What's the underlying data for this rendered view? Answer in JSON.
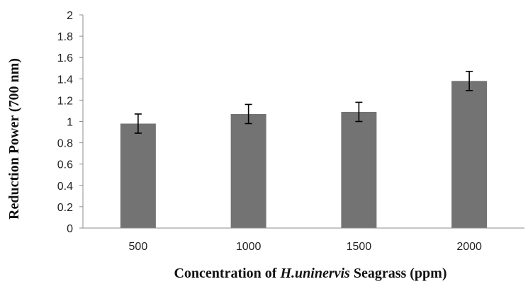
{
  "chart_data": {
    "type": "bar",
    "categories": [
      "500",
      "1000",
      "1500",
      "2000"
    ],
    "values": [
      0.98,
      1.07,
      1.09,
      1.38
    ],
    "errors": [
      0.09,
      0.09,
      0.09,
      0.09
    ],
    "ylabel": "Reduction Power (700 nm)",
    "xlabel": {
      "prefix": "Concentration of ",
      "italic": "H.uninervis",
      "suffix": " Seagrass (ppm)"
    },
    "ylim": [
      0,
      2
    ],
    "yticks": [
      "0",
      "0.2",
      "0.4",
      "0.6",
      "0.8",
      "1",
      "1.2",
      "1.4",
      "1.6",
      "1.8",
      "2"
    ],
    "grid": false,
    "legend": "none",
    "bar_color": "#737373",
    "axis_color": "#8c8c8c"
  }
}
